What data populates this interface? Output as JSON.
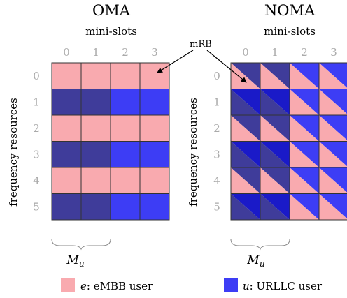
{
  "oma": {
    "title": "OMA",
    "subtitle": "mini-slots",
    "slot_labels": [
      "0",
      "1",
      "2",
      "3"
    ],
    "row_labels": [
      "0",
      "1",
      "2",
      "3",
      "4",
      "5"
    ],
    "span_label": "M",
    "span_subscript": "u"
  },
  "noma": {
    "title": "NOMA",
    "subtitle": "mini-slots",
    "slot_labels": [
      "0",
      "1",
      "2",
      "3"
    ],
    "row_labels": [
      "0",
      "1",
      "2",
      "3",
      "4",
      "5"
    ],
    "span_label": "M",
    "span_subscript": "u"
  },
  "ylabel": "frequency resources",
  "mrb_label": "mRB",
  "legend": {
    "embb_symbol": "e",
    "embb_text": ": eMBB user",
    "urllc_symbol": "u",
    "urllc_text": ": URLLC user"
  },
  "colors": {
    "embb": "#f9aaaf",
    "urllc": "#3d3df5",
    "overlap": "#3f3c9a",
    "urllc_dark": "#1a1ac8",
    "grid": "#333333",
    "label_gray": "#aaaaaa"
  },
  "oma_grid": [
    [
      "e",
      "e",
      "e",
      "e"
    ],
    [
      "overlap",
      "overlap",
      "u",
      "u"
    ],
    [
      "e",
      "e",
      "e",
      "e"
    ],
    [
      "overlap",
      "overlap",
      "u",
      "u"
    ],
    [
      "e",
      "e",
      "e",
      "e"
    ],
    [
      "overlap",
      "overlap",
      "u",
      "u"
    ]
  ]
}
